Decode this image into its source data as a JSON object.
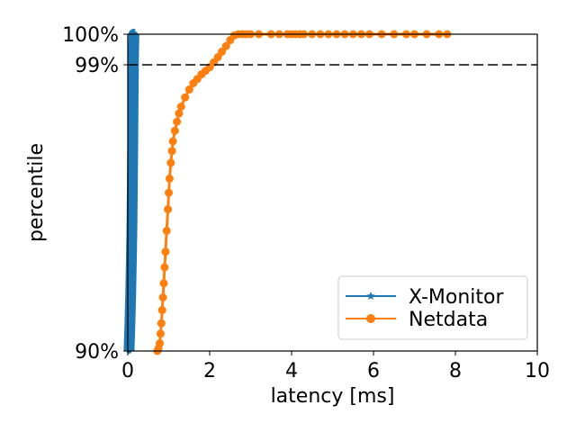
{
  "chart_data": {
    "type": "line",
    "title": "",
    "xlabel": "latency [ms]",
    "ylabel": "percentile",
    "xlim": [
      0,
      10
    ],
    "ylim": [
      90,
      100
    ],
    "y_scale": "log-tail",
    "x_ticks": [
      0,
      2,
      4,
      6,
      8,
      10
    ],
    "x_tick_labels": [
      "0",
      "2",
      "4",
      "6",
      "8",
      "10"
    ],
    "y_ticks": [
      90,
      99,
      100
    ],
    "y_tick_labels": [
      "90%",
      "99%",
      "100%"
    ],
    "reference_line": {
      "y": 99,
      "style": "dashed",
      "color": "#000000"
    },
    "legend": {
      "location": "lower right"
    },
    "series": [
      {
        "name": "X-Monitor",
        "color": "#1f77b4",
        "marker": "star",
        "x": [
          0.03,
          0.04,
          0.05,
          0.06,
          0.07,
          0.08,
          0.09,
          0.1,
          0.11,
          0.12,
          0.13,
          0.14,
          0.15,
          0.16,
          0.17,
          0.18
        ],
        "y": [
          90,
          90.9,
          91.8,
          92.7,
          93.6,
          94.5,
          95.4,
          96.3,
          97.2,
          98.1,
          98.7,
          99.1,
          99.4,
          99.6,
          99.8,
          100
        ]
      },
      {
        "name": "Netdata",
        "color": "#ff7f0e",
        "marker": "circle",
        "x": [
          0.72,
          0.75,
          0.78,
          0.8,
          0.82,
          0.84,
          0.86,
          0.88,
          0.9,
          0.92,
          0.95,
          0.98,
          1.0,
          1.02,
          1.05,
          1.08,
          1.1,
          1.15,
          1.2,
          1.25,
          1.3,
          1.4,
          1.5,
          1.6,
          1.7,
          1.8,
          1.9,
          2.0,
          2.1,
          2.2,
          2.3,
          2.4,
          2.5,
          2.6,
          2.7,
          2.8,
          2.9,
          3.0,
          3.2,
          3.5,
          3.7,
          3.9,
          4.0,
          4.1,
          4.2,
          4.3,
          4.5,
          4.7,
          4.9,
          5.1,
          5.3,
          5.5,
          5.7,
          5.9,
          6.2,
          6.5,
          6.8,
          7.0,
          7.3,
          7.6,
          7.8
        ],
        "y": [
          90.0,
          90.2,
          90.6,
          91.3,
          92.0,
          92.8,
          93.5,
          94.2,
          94.9,
          95.5,
          96.2,
          96.8,
          97.2,
          97.5,
          97.8,
          98.0,
          98.15,
          98.3,
          98.42,
          98.52,
          98.6,
          98.7,
          98.78,
          98.84,
          98.88,
          98.92,
          98.95,
          98.98,
          99.02,
          99.06,
          99.1,
          99.14,
          99.18,
          99.21,
          99.23,
          99.25,
          99.27,
          99.28,
          99.3,
          99.32,
          99.36,
          99.42,
          99.46,
          99.48,
          99.5,
          99.52,
          99.55,
          99.58,
          99.62,
          99.67,
          99.72,
          99.77,
          99.8,
          99.83,
          99.86,
          99.9,
          99.93,
          99.95,
          99.97,
          99.99,
          100
        ]
      }
    ]
  }
}
